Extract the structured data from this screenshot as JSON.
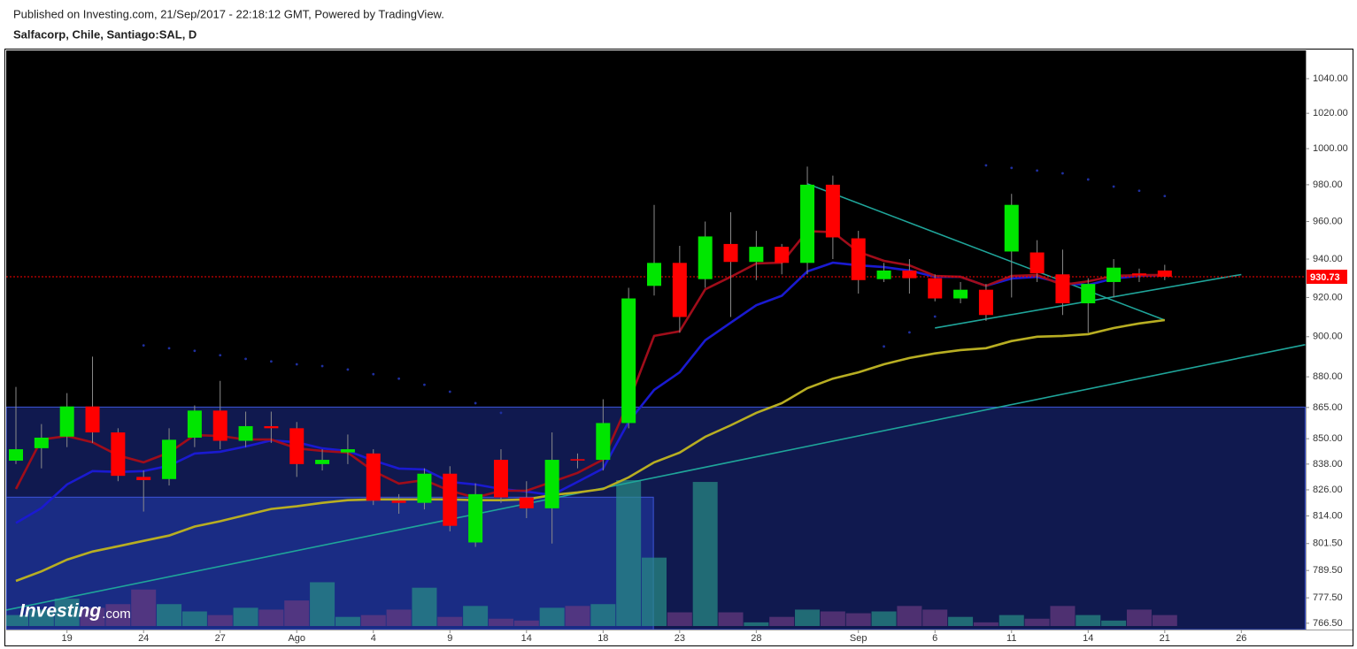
{
  "chart_data": {
    "type": "candlestick",
    "subtitle": "Published on Investing.com, 21/Sep/2017 - 22:18:12 GMT, Powered by TradingView.",
    "title": "Salfacorp, Chile, Santiago:SAL, D",
    "log": true,
    "ylim": [
      763.8,
      1056.6
    ],
    "yticks": [
      {
        "value": 1040,
        "label": "1040.00"
      },
      {
        "value": 1020,
        "label": "1020.00"
      },
      {
        "value": 1000,
        "label": "1000.00"
      },
      {
        "value": 980,
        "label": "980.00"
      },
      {
        "value": 960,
        "label": "960.00"
      },
      {
        "value": 940,
        "label": "940.00"
      },
      {
        "value": 920,
        "label": "920.00"
      },
      {
        "value": 900,
        "label": "900.00"
      },
      {
        "value": 880,
        "label": "880.00"
      },
      {
        "value": 865,
        "label": "865.00"
      },
      {
        "value": 850,
        "label": "850.00"
      },
      {
        "value": 838,
        "label": "838.00"
      },
      {
        "value": 826,
        "label": "826.00"
      },
      {
        "value": 814,
        "label": "814.00"
      },
      {
        "value": 801.5,
        "label": "801.50"
      },
      {
        "value": 789.5,
        "label": "789.50"
      },
      {
        "value": 777.5,
        "label": "777.50"
      },
      {
        "value": 766.5,
        "label": "766.50"
      }
    ],
    "categories": [
      null,
      null,
      "19",
      null,
      null,
      "24",
      null,
      null,
      "27",
      null,
      null,
      "Ago",
      null,
      null,
      "4",
      null,
      null,
      "9",
      null,
      null,
      "14",
      null,
      null,
      "18",
      null,
      null,
      "23",
      null,
      null,
      "28",
      null,
      null,
      null,
      "Sep",
      null,
      null,
      "6",
      null,
      null,
      "11",
      null,
      null,
      "14",
      null,
      null,
      "21",
      null,
      null,
      "26"
    ],
    "open": [
      839.6,
      845.5,
      851,
      865.5,
      853,
      832,
      831,
      850.5,
      863.5,
      849,
      856,
      855,
      838,
      843.5,
      843,
      821,
      820,
      833.5,
      802,
      840,
      822.5,
      817.5,
      840.3,
      840,
      857.5,
      926,
      938,
      929.5,
      948,
      938.5,
      946.5,
      938,
      980,
      951,
      929.5,
      934,
      930,
      919.5,
      924,
      944,
      943.5,
      932,
      917,
      928,
      932.5,
      934,
      null,
      null,
      null
    ],
    "high": [
      875,
      857,
      872,
      890,
      855,
      835,
      855,
      866,
      878,
      863,
      863,
      858,
      845,
      852,
      845,
      824,
      836,
      837,
      829,
      845,
      830,
      853,
      843,
      869,
      925,
      969,
      947,
      960,
      965,
      955,
      948,
      990,
      985,
      955,
      938,
      940,
      932,
      928,
      927,
      975,
      950,
      945,
      930,
      940,
      935,
      937,
      null,
      null,
      null
    ],
    "low": [
      838,
      836,
      846,
      848,
      830,
      816,
      828,
      846,
      845,
      846,
      848,
      832,
      835,
      838,
      819,
      815,
      817,
      807,
      800,
      820,
      813,
      801.5,
      836,
      835,
      855,
      921,
      902,
      925,
      910,
      929,
      932,
      932,
      940,
      922,
      928,
      922,
      918,
      917,
      908,
      920,
      928,
      911,
      902,
      920,
      928,
      929,
      null,
      null,
      null
    ],
    "close": [
      845,
      850.5,
      865.5,
      853,
      832.5,
      830.5,
      849.5,
      863.5,
      849,
      856,
      855,
      838,
      840,
      845,
      821,
      820,
      833.5,
      809.5,
      824,
      822.5,
      817.5,
      840,
      839.7,
      857.5,
      919.5,
      938,
      910,
      952,
      938.5,
      946.5,
      938,
      980,
      951.5,
      929,
      934,
      930,
      919.5,
      924,
      911,
      969,
      932.5,
      917,
      927,
      935.5,
      931.5,
      930.73,
      null,
      null,
      null
    ],
    "volume": [
      12,
      18,
      30,
      20,
      24,
      40,
      24,
      16,
      12,
      20,
      18,
      28,
      48,
      10,
      12,
      18,
      42,
      10,
      22,
      8,
      6,
      20,
      22,
      24,
      160,
      75,
      15,
      158,
      15,
      4,
      10,
      18,
      16,
      14,
      16,
      22,
      18,
      10,
      4,
      12,
      8,
      22,
      12,
      6,
      18,
      12,
      null,
      null,
      null
    ],
    "up_color": "#00e600",
    "down_color": "#ff0000",
    "wick_color": "#8a8a8a",
    "volume_up_color": "#2a8f86",
    "volume_down_color": "#6a3a80",
    "overlays": [
      {
        "color": "#1a1ad0",
        "values": [
          810.8,
          817.6,
          828.5,
          834.7,
          834.3,
          834.7,
          837.2,
          843,
          843.8,
          846.3,
          849.2,
          848.3,
          845.4,
          844.2,
          839.7,
          835.9,
          835.5,
          829.7,
          828.5,
          826.4,
          825.2,
          823.6,
          829.7,
          835.9,
          858.1,
          873.6,
          882.2,
          898.2,
          907.1,
          916,
          920.9,
          933.5,
          938.1,
          936.7,
          935.8,
          934,
          930.7,
          930.7,
          926,
          929.8,
          930.7,
          927.4,
          926.5,
          929.8,
          931.2,
          931.6,
          null,
          null,
          null
        ]
      },
      {
        "color": "#a00d1a",
        "values": [
          826.4,
          849.6,
          851.3,
          848.3,
          842.1,
          838.8,
          843.4,
          851.7,
          851.3,
          849.6,
          849.6,
          845.4,
          844.2,
          843.4,
          834.7,
          828.9,
          830.5,
          825.6,
          822.4,
          825.6,
          825.6,
          829.7,
          833.9,
          840.1,
          867.6,
          900.4,
          902.7,
          924.2,
          930.7,
          937.7,
          938.1,
          954.8,
          954.3,
          943.8,
          939.1,
          936.7,
          931.2,
          930.7,
          926,
          931.2,
          931.6,
          926.5,
          928.4,
          931.2,
          931.6,
          931.6,
          null,
          null,
          null
        ]
      },
      {
        "color": "#b8ae22",
        "values": [
          784.9,
          789.1,
          794.3,
          797.9,
          800.3,
          802.7,
          805.1,
          809.2,
          811.6,
          814.4,
          817.2,
          818.4,
          820,
          821.2,
          821.6,
          821.6,
          821.6,
          821.6,
          821.2,
          821.2,
          821.6,
          823.6,
          824.8,
          826.4,
          831.8,
          838.8,
          843.4,
          850.9,
          856.4,
          862.4,
          867.1,
          874.4,
          879.1,
          882.2,
          886.2,
          889.3,
          891.6,
          893.3,
          894.2,
          897.8,
          900,
          900.4,
          901.3,
          904.4,
          906.7,
          908.4,
          null,
          null,
          null
        ]
      }
    ],
    "sar": {
      "color": "#1f2fa0",
      "values": [
        null,
        null,
        null,
        null,
        null,
        895.6,
        894.2,
        892.9,
        890.7,
        888.9,
        887.6,
        886.2,
        885.3,
        883.6,
        881.3,
        879.1,
        876.1,
        872.7,
        867.1,
        862.4,
        null,
        null,
        null,
        null,
        null,
        null,
        null,
        null,
        null,
        null,
        null,
        null,
        null,
        null,
        895.1,
        902.2,
        910.2,
        null,
        990.7,
        989.3,
        987.8,
        986.3,
        982.9,
        979,
        976.7,
        973.8,
        null,
        null,
        null
      ]
    },
    "zones": [
      {
        "color": "#16226a",
        "x": [
          -0.38,
          50.5
        ],
        "top": 865.2
      },
      {
        "color": "#1e3396",
        "x": [
          -0.38,
          24.97
        ],
        "top": 822.6
      }
    ],
    "trendlines": [
      {
        "color": "#1fa59a",
        "x": [
          -0.38,
          50.5
        ],
        "values": [
          772.2,
          896
        ]
      },
      {
        "color": "#1fa59a",
        "x": [
          31,
          45
        ],
        "values": [
          980.5,
          908.4
        ]
      },
      {
        "color": "#1fa59a",
        "x": [
          36,
          48
        ],
        "values": [
          904.4,
          931.9
        ]
      }
    ],
    "last_price": 930.73,
    "last_price_color": "#ff0000",
    "watermark": {
      "name": "Investing",
      "suffix": ".com"
    }
  }
}
